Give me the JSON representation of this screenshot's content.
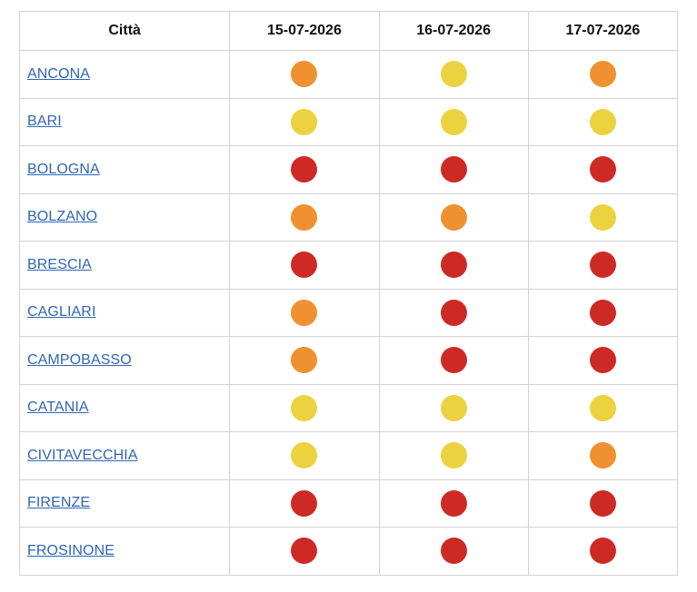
{
  "colors": {
    "red": "#cd2a26",
    "orange": "#ef9130",
    "yellow": "#edd23f",
    "link": "#2f66b3",
    "border": "#d2d2d2"
  },
  "table": {
    "headers": [
      "Città",
      "15-07-2026",
      "16-07-2026",
      "17-07-2026"
    ],
    "rows": [
      {
        "city": "ANCONA",
        "levels": [
          "orange",
          "yellow",
          "orange"
        ]
      },
      {
        "city": "BARI",
        "levels": [
          "yellow",
          "yellow",
          "yellow"
        ]
      },
      {
        "city": "BOLOGNA",
        "levels": [
          "red",
          "red",
          "red"
        ]
      },
      {
        "city": "BOLZANO",
        "levels": [
          "orange",
          "orange",
          "yellow"
        ]
      },
      {
        "city": "BRESCIA",
        "levels": [
          "red",
          "red",
          "red"
        ]
      },
      {
        "city": "CAGLIARI",
        "levels": [
          "orange",
          "red",
          "red"
        ]
      },
      {
        "city": "CAMPOBASSO",
        "levels": [
          "orange",
          "red",
          "red"
        ]
      },
      {
        "city": "CATANIA",
        "levels": [
          "yellow",
          "yellow",
          "yellow"
        ]
      },
      {
        "city": "CIVITAVECCHIA",
        "levels": [
          "yellow",
          "yellow",
          "orange"
        ]
      },
      {
        "city": "FIRENZE",
        "levels": [
          "red",
          "red",
          "red"
        ]
      },
      {
        "city": "FROSINONE",
        "levels": [
          "red",
          "red",
          "red"
        ]
      }
    ]
  }
}
